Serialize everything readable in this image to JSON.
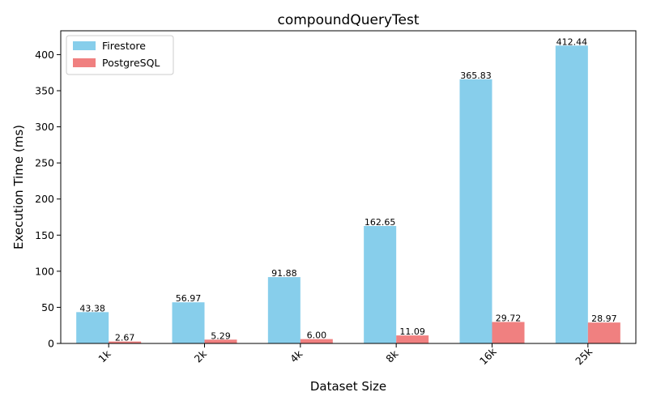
{
  "chart_data": {
    "type": "bar",
    "title": "compoundQueryTest",
    "xlabel": "Dataset Size",
    "ylabel": "Execution Time (ms)",
    "categories": [
      "1k",
      "2k",
      "4k",
      "8k",
      "16k",
      "25k"
    ],
    "series": [
      {
        "name": "Firestore",
        "color": "#87ceeb",
        "values": [
          43.38,
          56.97,
          91.88,
          162.65,
          365.83,
          412.44
        ],
        "labels": [
          "43.38",
          "56.97",
          "91.88",
          "162.65",
          "365.83",
          "412.44"
        ]
      },
      {
        "name": "PostgreSQL",
        "color": "#f08080",
        "values": [
          2.67,
          5.29,
          6.0,
          11.09,
          29.72,
          28.97
        ],
        "labels": [
          "2.67",
          "5.29",
          "6.00",
          "11.09",
          "29.72",
          "28.97"
        ]
      }
    ],
    "yticks": [
      "0",
      "50",
      "100",
      "150",
      "200",
      "250",
      "300",
      "350",
      "400"
    ],
    "ylim": [
      0,
      433
    ],
    "grid": false,
    "legend": "top-left"
  }
}
